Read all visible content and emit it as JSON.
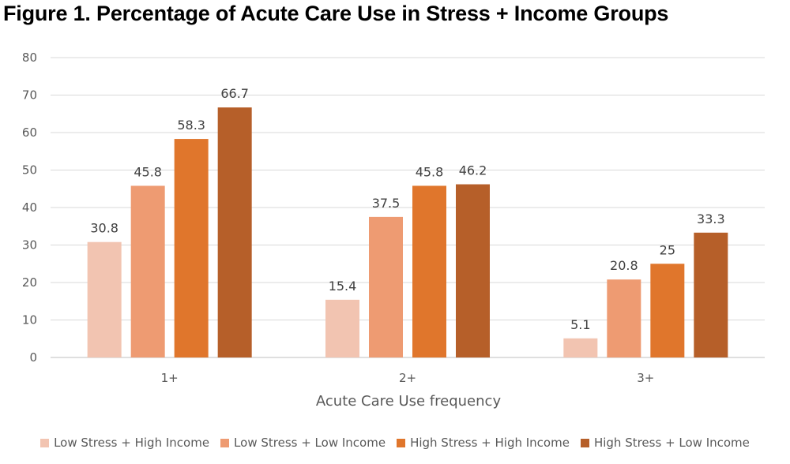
{
  "title": "Figure 1. Percentage of Acute Care Use in Stress + Income Groups",
  "chart_data": {
    "type": "bar",
    "categories": [
      "1+",
      "2+",
      "3+"
    ],
    "series": [
      {
        "name": "Low Stress + High Income",
        "color": "#f2c4b1",
        "values": [
          30.8,
          15.4,
          5.1
        ]
      },
      {
        "name": "Low Stress + Low Income",
        "color": "#ee9b72",
        "values": [
          45.8,
          37.5,
          20.8
        ]
      },
      {
        "name": "High Stress + High Income",
        "color": "#e0762c",
        "values": [
          58.3,
          45.8,
          25
        ]
      },
      {
        "name": "High Stress + Low Income",
        "color": "#b65f29",
        "values": [
          66.7,
          46.2,
          33.3
        ]
      }
    ],
    "data_labels": [
      [
        "30.8",
        "45.8",
        "58.3",
        "66.7"
      ],
      [
        "15.4",
        "37.5",
        "45.8",
        "46.2"
      ],
      [
        "5.1",
        "20.8",
        "25",
        "33.3"
      ]
    ],
    "xlabel": "Acute Care Use frequency",
    "ylabel": "",
    "ylim": [
      0,
      80
    ],
    "yticks": [
      "0",
      "10",
      "20",
      "30",
      "40",
      "50",
      "60",
      "70",
      "80"
    ],
    "grid": true,
    "legend_position": "bottom"
  }
}
